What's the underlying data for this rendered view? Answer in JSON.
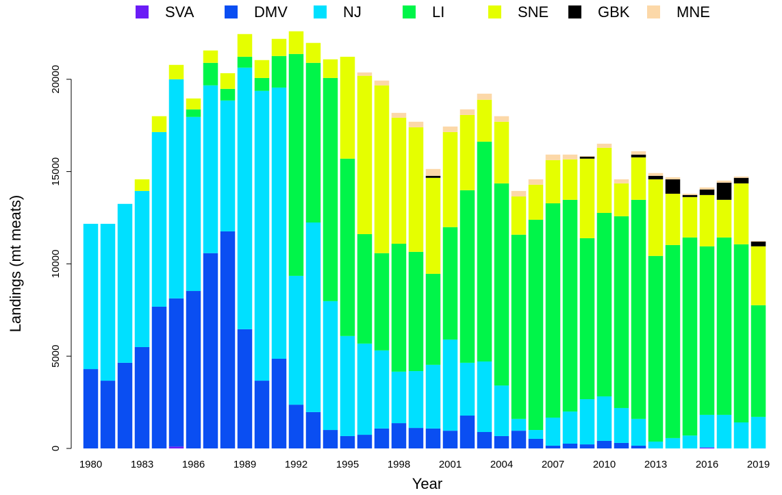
{
  "chart_data": {
    "type": "stacked_bar",
    "x_label": "Year",
    "y_label": "Landings (mt meats)",
    "x": [
      1980,
      1981,
      1982,
      1983,
      1984,
      1985,
      1986,
      1987,
      1988,
      1989,
      1990,
      1991,
      1992,
      1993,
      1994,
      1995,
      1996,
      1997,
      1998,
      1999,
      2000,
      2001,
      2002,
      2003,
      2004,
      2005,
      2006,
      2007,
      2008,
      2009,
      2010,
      2011,
      2012,
      2013,
      2014,
      2015,
      2016,
      2017,
      2018,
      2019
    ],
    "xlim": [
      1979.3,
      2019.7
    ],
    "xticks": [
      1980,
      1983,
      1986,
      1989,
      1992,
      1995,
      1998,
      2001,
      2004,
      2007,
      2010,
      2013,
      2016,
      2019
    ],
    "ylim": [
      0,
      22700
    ],
    "yticks": [
      0,
      5000,
      10000,
      15000,
      20000
    ],
    "grid": false,
    "legend_position": "top",
    "series": [
      {
        "name": "SVA",
        "color": "#6a1cf6",
        "values": [
          0,
          0,
          0,
          0,
          0,
          100,
          0,
          0,
          0,
          0,
          0,
          0,
          0,
          0,
          0,
          0,
          0,
          0,
          0,
          0,
          0,
          0,
          0,
          0,
          0,
          0,
          0,
          0,
          0,
          0,
          0,
          0,
          0,
          0,
          0,
          0,
          50,
          0,
          0,
          0
        ]
      },
      {
        "name": "DMV",
        "color": "#0a4ef2",
        "values": [
          4300,
          3670,
          4640,
          5490,
          7680,
          8030,
          8530,
          10580,
          11760,
          6460,
          3670,
          4860,
          2370,
          1970,
          1000,
          670,
          740,
          1080,
          1370,
          1110,
          1080,
          960,
          1780,
          890,
          670,
          960,
          520,
          150,
          260,
          220,
          410,
          300,
          150,
          0,
          0,
          0,
          0,
          0,
          0,
          0
        ]
      },
      {
        "name": "NJ",
        "color": "#00e0ff",
        "values": [
          7870,
          8500,
          8610,
          8460,
          9460,
          11870,
          9430,
          9090,
          7090,
          14170,
          15700,
          14690,
          6980,
          10270,
          6980,
          5420,
          4940,
          4230,
          2790,
          3080,
          3450,
          4940,
          2860,
          3820,
          2740,
          640,
          480,
          1520,
          1740,
          2450,
          2410,
          1890,
          1450,
          370,
          560,
          700,
          1770,
          1820,
          1410,
          1710
        ]
      },
      {
        "name": "LI",
        "color": "#00f549",
        "values": [
          0,
          0,
          0,
          0,
          0,
          0,
          410,
          1220,
          630,
          590,
          700,
          1710,
          12020,
          8650,
          12090,
          9610,
          5930,
          5270,
          6930,
          6460,
          4930,
          6090,
          9350,
          11910,
          10950,
          9980,
          11390,
          11610,
          11470,
          8720,
          9940,
          10390,
          11870,
          10060,
          10460,
          10730,
          9130,
          9610,
          9650,
          6050
        ]
      },
      {
        "name": "SNE",
        "color": "#e5ff00",
        "values": [
          0,
          0,
          0,
          630,
          860,
          780,
          590,
          670,
          850,
          1230,
          970,
          930,
          1230,
          1080,
          1010,
          5520,
          8580,
          9090,
          6830,
          6750,
          5200,
          5150,
          4080,
          2270,
          3340,
          2070,
          1900,
          2340,
          2190,
          4310,
          3530,
          1780,
          2300,
          4150,
          2780,
          2190,
          2780,
          2040,
          3300,
          3190
        ]
      },
      {
        "name": "GBK",
        "color": "#000000",
        "values": [
          0,
          0,
          0,
          0,
          0,
          0,
          0,
          0,
          0,
          0,
          0,
          0,
          0,
          0,
          0,
          0,
          0,
          0,
          0,
          0,
          110,
          0,
          0,
          0,
          0,
          0,
          0,
          0,
          0,
          110,
          0,
          0,
          150,
          190,
          780,
          110,
          300,
          930,
          300,
          260
        ]
      },
      {
        "name": "MNE",
        "color": "#fcd8a8",
        "values": [
          0,
          0,
          0,
          0,
          0,
          0,
          0,
          0,
          0,
          0,
          0,
          0,
          0,
          0,
          0,
          0,
          180,
          260,
          260,
          300,
          370,
          300,
          300,
          330,
          300,
          300,
          290,
          300,
          260,
          30,
          220,
          220,
          180,
          150,
          110,
          70,
          110,
          110,
          70,
          30
        ]
      }
    ]
  }
}
